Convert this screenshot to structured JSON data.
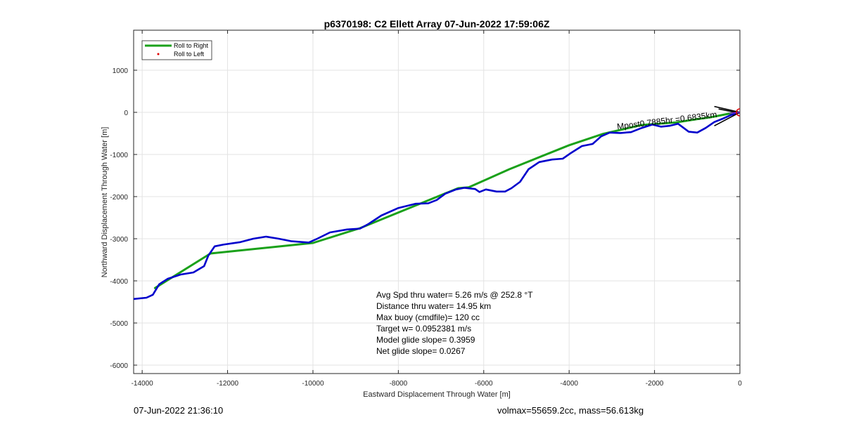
{
  "chart_data": {
    "type": "line",
    "title": "p6370198: C2 Ellett Array 07-Jun-2022 17:59:06Z",
    "xlabel": "Eastward Displacement Through Water [m]",
    "ylabel": "Northward Displacement Through Water [m]",
    "xlim": [
      -14200,
      0
    ],
    "ylim": [
      -6200,
      1950
    ],
    "xticks": [
      -14000,
      -12000,
      -10000,
      -8000,
      -6000,
      -4000,
      -2000,
      0
    ],
    "yticks": [
      -6000,
      -5000,
      -4000,
      -3000,
      -2000,
      -1000,
      0,
      1000
    ],
    "grid": true,
    "legend_position": "top-left",
    "legend": [
      "Roll to Right",
      "Roll to Left"
    ],
    "series": [
      {
        "name": "Roll to Right",
        "color": "#1aa11a",
        "x": [
          -13700,
          -12400,
          -10000,
          -8900,
          -6600,
          -6350,
          -5400,
          -4000,
          -3200,
          -2300,
          -1500,
          -1000,
          -700,
          -400,
          -100
        ],
        "y": [
          -4170,
          -3350,
          -3100,
          -2750,
          -1800,
          -1780,
          -1350,
          -780,
          -510,
          -300,
          -240,
          -160,
          -120,
          -60,
          0
        ]
      },
      {
        "name": "Roll to Left",
        "color": "#0000cc",
        "x": [
          -14200,
          -13900,
          -13750,
          -13600,
          -13400,
          -13100,
          -12800,
          -12550,
          -12450,
          -12300,
          -12100,
          -11700,
          -11400,
          -11100,
          -10800,
          -10500,
          -10100,
          -9900,
          -9600,
          -9200,
          -8900,
          -8700,
          -8400,
          -8000,
          -7600,
          -7300,
          -7100,
          -6900,
          -6650,
          -6450,
          -6200,
          -6100,
          -5950,
          -5700,
          -5500,
          -5350,
          -5150,
          -4950,
          -4700,
          -4400,
          -4150,
          -3950,
          -3700,
          -3450,
          -3250,
          -3050,
          -2800,
          -2550,
          -2300,
          -2050,
          -1850,
          -1650,
          -1450,
          -1200,
          -1000,
          -800,
          -600,
          -400,
          -200,
          0
        ],
        "y": [
          -4430,
          -4400,
          -4330,
          -4080,
          -3950,
          -3850,
          -3800,
          -3650,
          -3400,
          -3180,
          -3140,
          -3080,
          -3000,
          -2950,
          -3000,
          -3060,
          -3090,
          -3000,
          -2850,
          -2780,
          -2760,
          -2650,
          -2450,
          -2270,
          -2170,
          -2160,
          -2080,
          -1930,
          -1830,
          -1790,
          -1820,
          -1890,
          -1830,
          -1880,
          -1880,
          -1800,
          -1650,
          -1350,
          -1180,
          -1120,
          -1100,
          -960,
          -800,
          -750,
          -570,
          -480,
          -490,
          -470,
          -370,
          -290,
          -340,
          -320,
          -270,
          -460,
          -480,
          -370,
          -230,
          -150,
          -60,
          0
        ]
      }
    ],
    "heading_arrow": {
      "x_from": -600,
      "y_from": -320,
      "x_to": 0,
      "y_to": 0
    },
    "mirrored_annotation": "Mpost0.7885hr =0.6835km",
    "annotation_lines": [
      "Avg Spd thru water=  5.26 m/s @ 252.8 °T",
      "Distance thru water= 14.95 km",
      "Max buoy (cmdfile)= 120 cc",
      "Target w= 0.0952381 m/s",
      "Model glide slope= 0.3959",
      "Net glide slope= 0.0267"
    ]
  },
  "footer": {
    "left": "07-Jun-2022 21:36:10",
    "right": "volmax=55659.2cc, mass=56.613kg"
  }
}
